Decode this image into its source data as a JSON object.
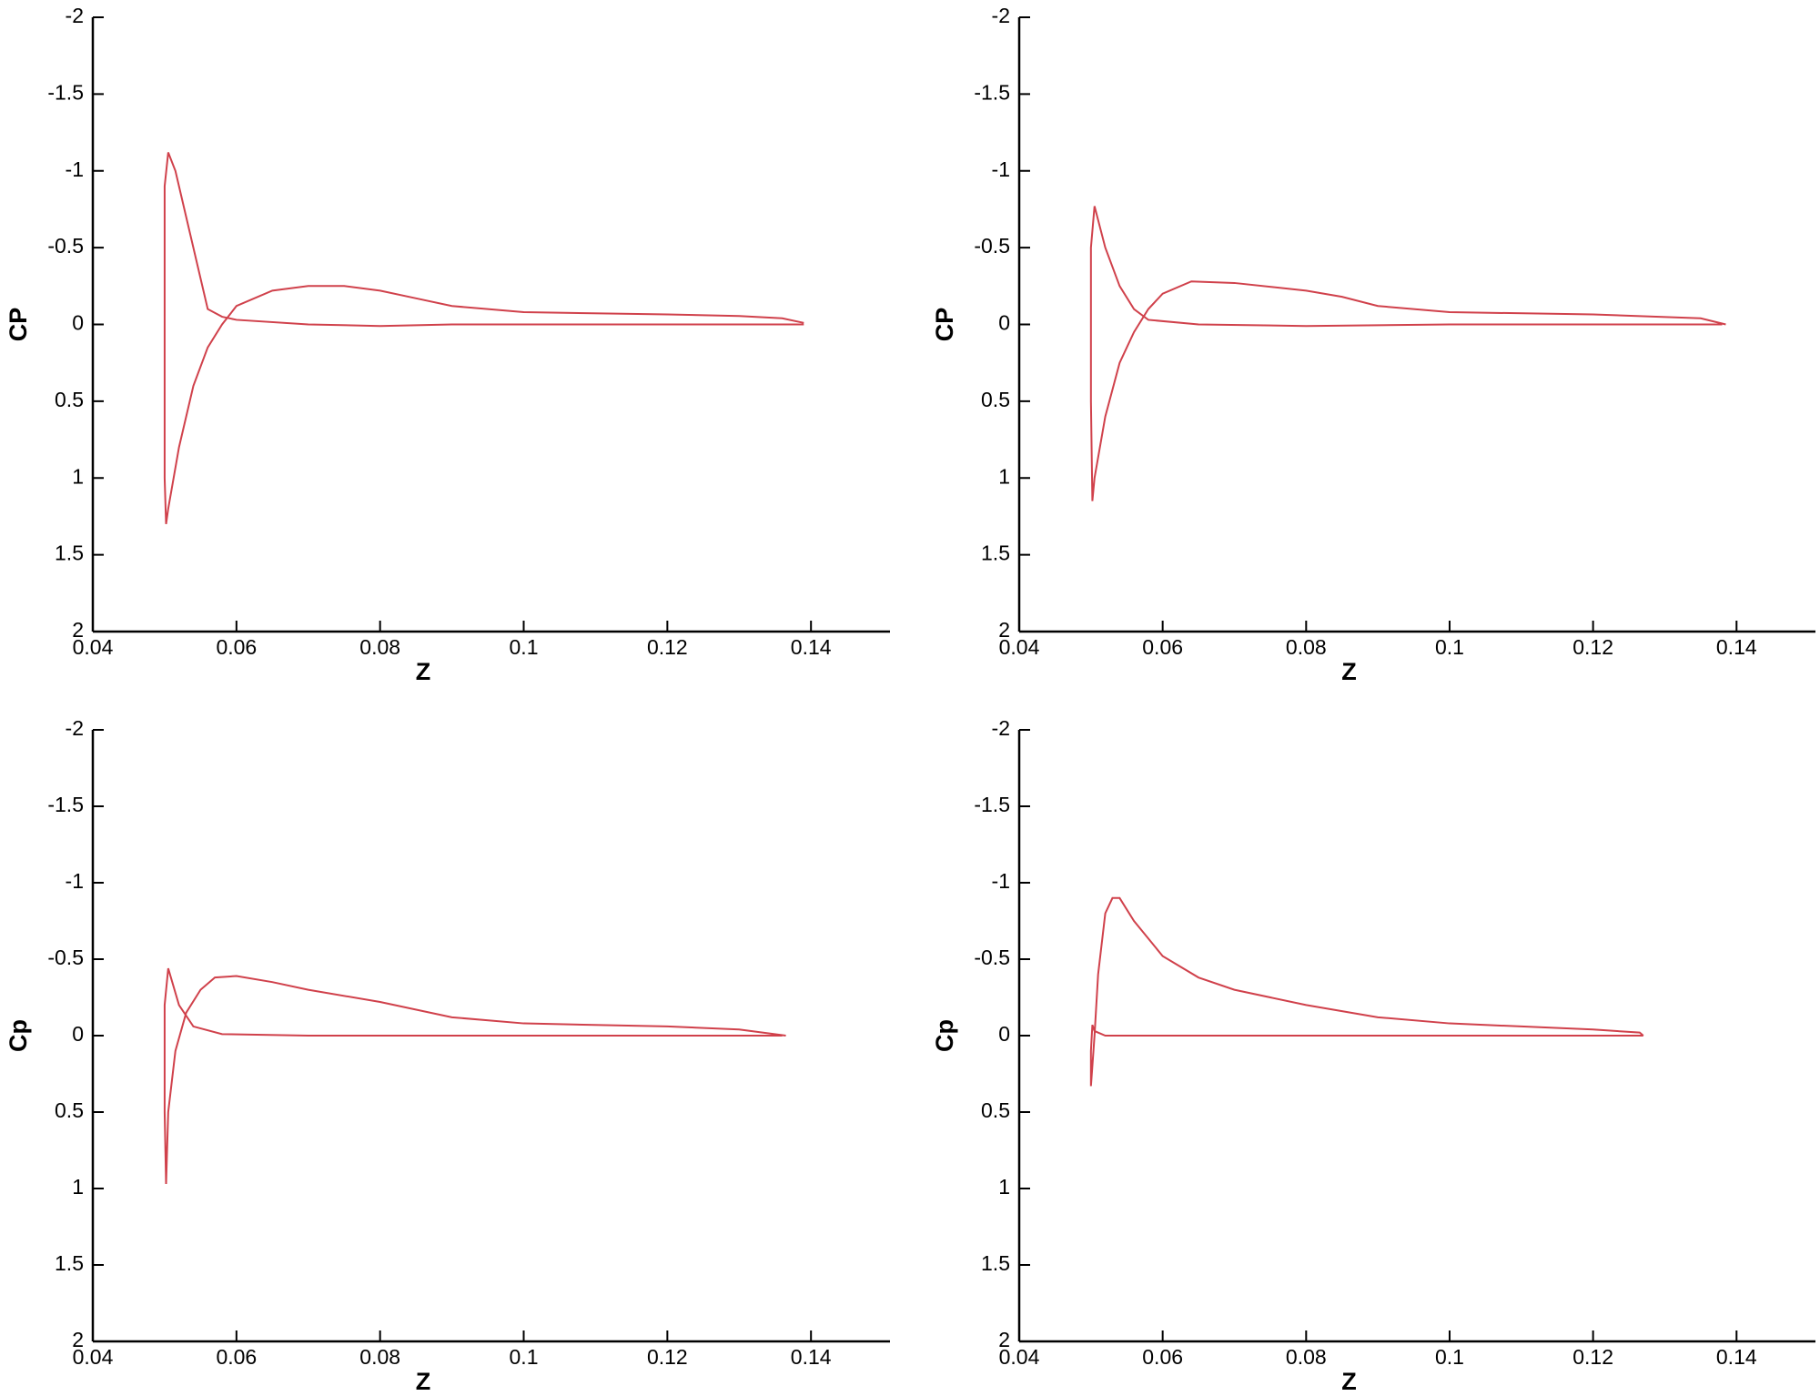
{
  "chart_data": [
    {
      "type": "line",
      "xlabel": "Z",
      "ylabel": "CP",
      "xlim": [
        0.04,
        0.151
      ],
      "ylim": [
        -2,
        2
      ],
      "y_inverted": true,
      "xticks": [
        0.04,
        0.06,
        0.08,
        0.1,
        0.12,
        0.14
      ],
      "yticks": [
        -2,
        -1.5,
        -1,
        -0.5,
        0,
        0.5,
        1,
        1.5,
        2
      ],
      "series": [
        {
          "color": "#d0414b",
          "x": [
            0.139,
            0.12,
            0.1,
            0.09,
            0.08,
            0.07,
            0.06,
            0.058,
            0.056,
            0.055,
            0.053,
            0.0515,
            0.0505,
            0.05,
            0.05,
            0.05,
            0.0502,
            0.0505,
            0.052,
            0.054,
            0.056,
            0.058,
            0.06,
            0.065,
            0.07,
            0.075,
            0.08,
            0.085,
            0.09,
            0.095,
            0.1,
            0.12,
            0.13,
            0.136,
            0.139
          ],
          "values": [
            0,
            0,
            0,
            0,
            0.01,
            0,
            -0.03,
            -0.05,
            -0.1,
            -0.3,
            -0.7,
            -1.0,
            -1.12,
            -0.9,
            0,
            1.0,
            1.3,
            1.2,
            0.8,
            0.4,
            0.15,
            0,
            -0.12,
            -0.22,
            -0.25,
            -0.25,
            -0.22,
            -0.17,
            -0.12,
            -0.1,
            -0.08,
            -0.065,
            -0.055,
            -0.04,
            -0.01
          ]
        }
      ]
    },
    {
      "type": "line",
      "xlabel": "Z",
      "ylabel": "CP",
      "xlim": [
        0.04,
        0.151
      ],
      "ylim": [
        -2,
        2
      ],
      "y_inverted": true,
      "xticks": [
        0.04,
        0.06,
        0.08,
        0.1,
        0.12,
        0.14
      ],
      "yticks": [
        -2,
        -1.5,
        -1,
        -0.5,
        0,
        0.5,
        1,
        1.5,
        2
      ],
      "series": [
        {
          "color": "#d0414b",
          "x": [
            0.138,
            0.1,
            0.08,
            0.065,
            0.058,
            0.056,
            0.054,
            0.052,
            0.0505,
            0.05,
            0.05,
            0.0502,
            0.0505,
            0.052,
            0.054,
            0.056,
            0.058,
            0.06,
            0.064,
            0.07,
            0.08,
            0.085,
            0.09,
            0.1,
            0.12,
            0.135,
            0.1385
          ],
          "values": [
            0,
            0,
            0.01,
            0,
            -0.03,
            -0.1,
            -0.25,
            -0.5,
            -0.77,
            -0.5,
            0.5,
            1.15,
            1.0,
            0.6,
            0.25,
            0.05,
            -0.1,
            -0.2,
            -0.28,
            -0.27,
            -0.22,
            -0.18,
            -0.12,
            -0.08,
            -0.065,
            -0.04,
            0
          ]
        }
      ]
    },
    {
      "type": "line",
      "xlabel": "Z",
      "ylabel": "Cp",
      "xlim": [
        0.04,
        0.151
      ],
      "ylim": [
        -2,
        2
      ],
      "y_inverted": true,
      "xticks": [
        0.04,
        0.06,
        0.08,
        0.1,
        0.12,
        0.14
      ],
      "yticks": [
        -2,
        -1.5,
        -1,
        -0.5,
        0,
        0.5,
        1,
        1.5,
        2
      ],
      "series": [
        {
          "color": "#d0414b",
          "x": [
            0.136,
            0.1,
            0.07,
            0.058,
            0.054,
            0.052,
            0.0505,
            0.05,
            0.05,
            0.0502,
            0.0505,
            0.0515,
            0.053,
            0.055,
            0.057,
            0.06,
            0.065,
            0.07,
            0.08,
            0.09,
            0.1,
            0.12,
            0.13,
            0.1365
          ],
          "values": [
            0,
            0,
            0,
            -0.01,
            -0.06,
            -0.2,
            -0.44,
            -0.2,
            0.5,
            0.97,
            0.5,
            0.1,
            -0.15,
            -0.3,
            -0.38,
            -0.39,
            -0.35,
            -0.3,
            -0.22,
            -0.12,
            -0.08,
            -0.06,
            -0.04,
            0
          ]
        }
      ]
    },
    {
      "type": "line",
      "xlabel": "Z",
      "ylabel": "Cp",
      "xlim": [
        0.04,
        0.151
      ],
      "ylim": [
        -2,
        2
      ],
      "y_inverted": true,
      "xticks": [
        0.04,
        0.06,
        0.08,
        0.1,
        0.12,
        0.14
      ],
      "yticks": [
        -2,
        -1.5,
        -1,
        -0.5,
        0,
        0.5,
        1,
        1.5,
        2
      ],
      "series": [
        {
          "color": "#d0414b",
          "x": [
            0.127,
            0.06,
            0.052,
            0.0505,
            0.0502,
            0.05,
            0.05,
            0.0502,
            0.0505,
            0.051,
            0.052,
            0.053,
            0.054,
            0.056,
            0.06,
            0.065,
            0.07,
            0.08,
            0.09,
            0.1,
            0.11,
            0.12,
            0.1265,
            0.127
          ],
          "values": [
            0,
            0,
            0,
            -0.03,
            -0.07,
            0.1,
            0.33,
            0.2,
            0,
            -0.4,
            -0.8,
            -0.9,
            -0.9,
            -0.75,
            -0.52,
            -0.38,
            -0.3,
            -0.2,
            -0.12,
            -0.08,
            -0.06,
            -0.04,
            -0.02,
            0
          ]
        }
      ]
    }
  ]
}
